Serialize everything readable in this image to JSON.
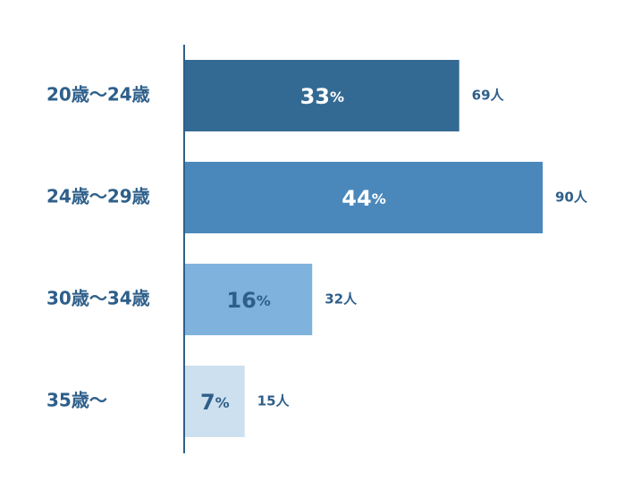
{
  "chart_data": {
    "type": "hbar",
    "categories": [
      "20歳〜24歳",
      "24歳〜29歳",
      "30歳〜34歳",
      "35歳〜"
    ],
    "values": [
      69,
      90,
      32,
      15
    ],
    "value_labels": [
      "69人",
      "90人",
      "32人",
      "15人"
    ],
    "shares": [
      33,
      44,
      16,
      7
    ],
    "share_labels": [
      "33%",
      "44%",
      "16%",
      "7%"
    ],
    "colors": [
      "#336a93",
      "#4a88bb",
      "#7fb3dd",
      "#cde0ef"
    ],
    "share_label_colors": [
      "#ffffff",
      "#ffffff",
      "#2f5f88",
      "#2f5f88"
    ],
    "xlim": [
      0,
      90
    ]
  }
}
